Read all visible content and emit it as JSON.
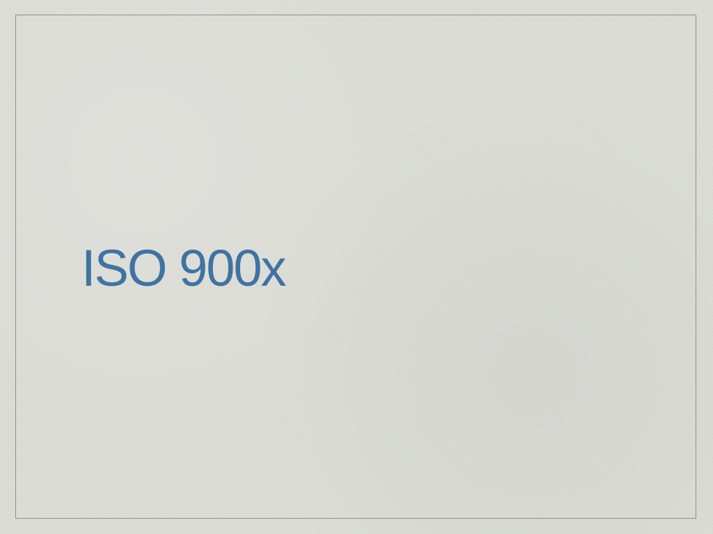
{
  "slide": {
    "title": "ISO 900x",
    "title_color": "#3f73a1",
    "background_color": "#dcddd7",
    "frame_color": "#8e8f8c"
  }
}
